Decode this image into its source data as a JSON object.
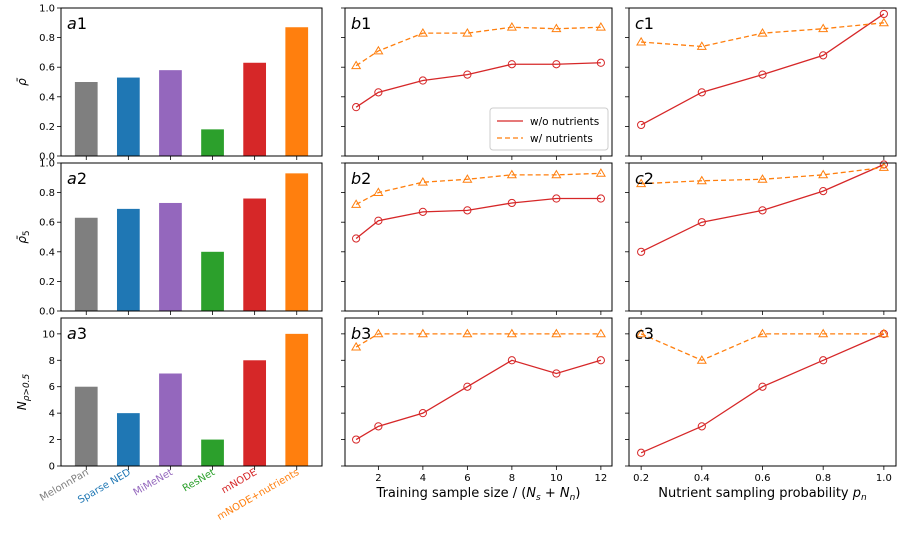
{
  "colors": {
    "MelonnPan": "#7f7f7f",
    "Sparse NED": "#1f77b4",
    "MiMeNet": "#9467bd",
    "ResNet": "#2ca02c",
    "mNODE": "#d62728",
    "mNODE+nutrients": "#ff7f0e",
    "wo": "#d62728",
    "w": "#ff7f0e"
  },
  "chart_data": [
    {
      "id": "a1",
      "type": "bar",
      "panel_label": "a1",
      "ylabel": "ρ̄",
      "ylim": [
        0,
        1.0
      ],
      "yticks": [
        "0.0",
        "0.2",
        "0.4",
        "0.6",
        "0.8",
        "1.0"
      ],
      "ytick_values": [
        0,
        0.2,
        0.4,
        0.6,
        0.8,
        1.0
      ],
      "categories": [
        "MelonnPan",
        "Sparse NED",
        "MiMeNet",
        "ResNet",
        "mNODE",
        "mNODE+nutrients"
      ],
      "values": [
        0.5,
        0.53,
        0.58,
        0.18,
        0.63,
        0.87
      ]
    },
    {
      "id": "a2",
      "type": "bar",
      "panel_label": "a2",
      "ylabel": "ρ̄5",
      "ylim": [
        0,
        1.0
      ],
      "yticks": [
        "0.0",
        "0.2",
        "0.4",
        "0.6",
        "0.8",
        "1.0"
      ],
      "ytick_values": [
        0,
        0.2,
        0.4,
        0.6,
        0.8,
        1.0
      ],
      "categories": [
        "MelonnPan",
        "Sparse NED",
        "MiMeNet",
        "ResNet",
        "mNODE",
        "mNODE+nutrients"
      ],
      "values": [
        0.63,
        0.69,
        0.73,
        0.4,
        0.76,
        0.93
      ]
    },
    {
      "id": "a3",
      "type": "bar",
      "panel_label": "a3",
      "ylabel": "Nρ>0.5",
      "ylim": [
        0,
        11.2
      ],
      "yticks": [
        "0",
        "2",
        "4",
        "6",
        "8",
        "10"
      ],
      "ytick_values": [
        0,
        2,
        4,
        6,
        8,
        10
      ],
      "categories": [
        "MelonnPan",
        "Sparse NED",
        "MiMeNet",
        "ResNet",
        "mNODE",
        "mNODE+nutrients"
      ],
      "values": [
        6,
        4,
        7,
        2,
        8,
        10
      ],
      "xtick_labels": [
        "MelonnPan",
        "Sparse NED",
        "MiMeNet",
        "ResNet",
        "mNODE",
        "mNODE+nutrients"
      ]
    },
    {
      "id": "b1",
      "type": "line",
      "panel_label": "b1",
      "ylim": [
        0,
        1.0
      ],
      "ytick_values": [
        0,
        0.2,
        0.4,
        0.6,
        0.8,
        1.0
      ],
      "xlim": [
        0.5,
        12.5
      ],
      "xtick_values": [
        2,
        4,
        6,
        8,
        10,
        12
      ],
      "x": [
        1,
        2,
        4,
        6,
        8,
        10,
        12
      ],
      "series": [
        {
          "name": "w/o nutrients",
          "values": [
            0.33,
            0.43,
            0.51,
            0.55,
            0.62,
            0.62,
            0.63
          ]
        },
        {
          "name": "w/ nutrients",
          "values": [
            0.61,
            0.71,
            0.83,
            0.83,
            0.87,
            0.86,
            0.87
          ]
        }
      ],
      "legend": {
        "position": "lower-right",
        "entries": [
          "w/o nutrients",
          "w/ nutrients"
        ]
      }
    },
    {
      "id": "b2",
      "type": "line",
      "panel_label": "b2",
      "ylim": [
        0,
        1.0
      ],
      "ytick_values": [
        0,
        0.2,
        0.4,
        0.6,
        0.8,
        1.0
      ],
      "xlim": [
        0.5,
        12.5
      ],
      "xtick_values": [
        2,
        4,
        6,
        8,
        10,
        12
      ],
      "x": [
        1,
        2,
        4,
        6,
        8,
        10,
        12
      ],
      "series": [
        {
          "name": "w/o nutrients",
          "values": [
            0.49,
            0.61,
            0.67,
            0.68,
            0.73,
            0.76,
            0.76
          ]
        },
        {
          "name": "w/ nutrients",
          "values": [
            0.72,
            0.8,
            0.87,
            0.89,
            0.92,
            0.92,
            0.93
          ]
        }
      ]
    },
    {
      "id": "b3",
      "type": "line",
      "panel_label": "b3",
      "ylim": [
        0,
        11.2
      ],
      "ytick_values": [
        0,
        2,
        4,
        6,
        8,
        10
      ],
      "xlim": [
        0.5,
        12.5
      ],
      "xtick_values": [
        2,
        4,
        6,
        8,
        10,
        12
      ],
      "xtick_labels": [
        "2",
        "4",
        "6",
        "8",
        "10",
        "12"
      ],
      "xlabel": "Training sample size / (Ns + Nn)",
      "x": [
        1,
        2,
        4,
        6,
        8,
        10,
        12
      ],
      "series": [
        {
          "name": "w/o nutrients",
          "values": [
            2,
            3,
            4,
            6,
            8,
            7,
            8
          ]
        },
        {
          "name": "w/ nutrients",
          "values": [
            9,
            10,
            10,
            10,
            10,
            10,
            10
          ]
        }
      ]
    },
    {
      "id": "c1",
      "type": "line",
      "panel_label": "c1",
      "ylim": [
        0,
        1.0
      ],
      "ytick_values": [
        0,
        0.2,
        0.4,
        0.6,
        0.8,
        1.0
      ],
      "xlim": [
        0.16,
        1.04
      ],
      "xtick_values": [
        0.2,
        0.4,
        0.6,
        0.8,
        1.0
      ],
      "x": [
        0.2,
        0.4,
        0.6,
        0.8,
        1.0
      ],
      "series": [
        {
          "name": "w/o nutrients",
          "values": [
            0.21,
            0.43,
            0.55,
            0.68,
            0.96
          ]
        },
        {
          "name": "w/ nutrients",
          "values": [
            0.77,
            0.74,
            0.83,
            0.86,
            0.9
          ]
        }
      ]
    },
    {
      "id": "c2",
      "type": "line",
      "panel_label": "c2",
      "ylim": [
        0,
        1.0
      ],
      "ytick_values": [
        0,
        0.2,
        0.4,
        0.6,
        0.8,
        1.0
      ],
      "xlim": [
        0.16,
        1.04
      ],
      "xtick_values": [
        0.2,
        0.4,
        0.6,
        0.8,
        1.0
      ],
      "x": [
        0.2,
        0.4,
        0.6,
        0.8,
        1.0
      ],
      "series": [
        {
          "name": "w/o nutrients",
          "values": [
            0.4,
            0.6,
            0.68,
            0.81,
            0.99
          ]
        },
        {
          "name": "w/ nutrients",
          "values": [
            0.86,
            0.88,
            0.89,
            0.92,
            0.97
          ]
        }
      ]
    },
    {
      "id": "c3",
      "type": "line",
      "panel_label": "c3",
      "ylim": [
        0,
        11.2
      ],
      "ytick_values": [
        0,
        2,
        4,
        6,
        8,
        10
      ],
      "xlim": [
        0.16,
        1.04
      ],
      "xtick_values": [
        0.2,
        0.4,
        0.6,
        0.8,
        1.0
      ],
      "xtick_labels": [
        "0.2",
        "0.4",
        "0.6",
        "0.8",
        "1.0"
      ],
      "xlabel": "Nutrient sampling probability pn",
      "x": [
        0.2,
        0.4,
        0.6,
        0.8,
        1.0
      ],
      "series": [
        {
          "name": "w/o nutrients",
          "values": [
            1,
            3,
            6,
            8,
            10
          ]
        },
        {
          "name": "w/ nutrients",
          "values": [
            10,
            8,
            10,
            10,
            10
          ]
        }
      ]
    }
  ]
}
